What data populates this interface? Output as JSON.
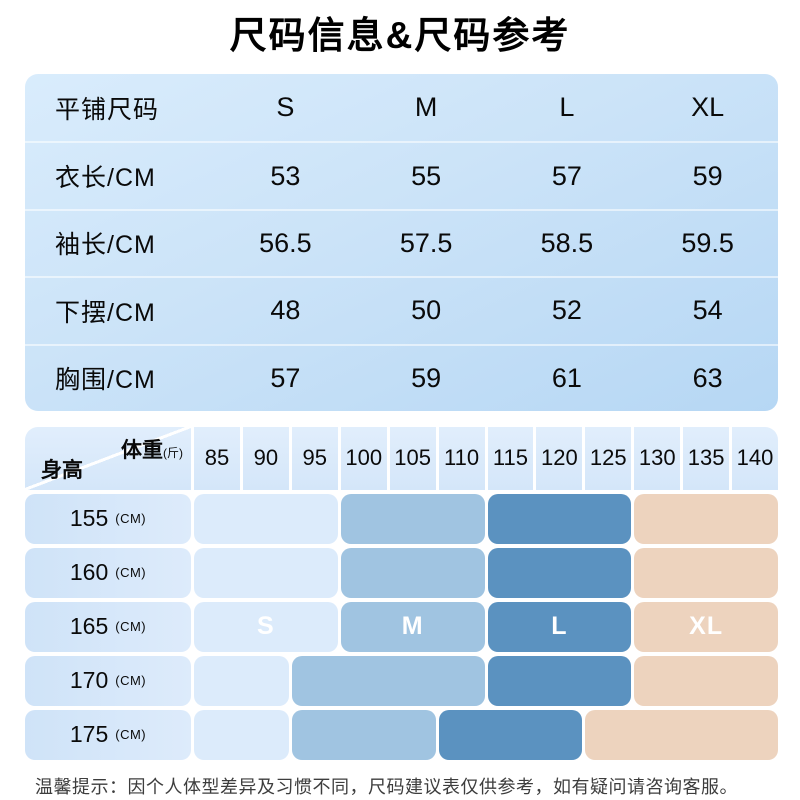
{
  "title": "尺码信息&尺码参考",
  "size_table": {
    "header": {
      "label": "平铺尺码",
      "sizes": [
        "S",
        "M",
        "L",
        "XL"
      ]
    },
    "rows": [
      {
        "label": "衣长/CM",
        "values": [
          "53",
          "55",
          "57",
          "59"
        ]
      },
      {
        "label": "袖长/CM",
        "values": [
          "56.5",
          "57.5",
          "58.5",
          "59.5"
        ]
      },
      {
        "label": "下摆/CM",
        "values": [
          "48",
          "50",
          "52",
          "54"
        ]
      },
      {
        "label": "胸围/CM",
        "values": [
          "57",
          "59",
          "61",
          "63"
        ]
      }
    ]
  },
  "matrix": {
    "corner": {
      "weight_label": "体重",
      "weight_unit": "(斤)",
      "height_label": "身高"
    },
    "weights": [
      "85",
      "90",
      "95",
      "100",
      "105",
      "110",
      "115",
      "120",
      "125",
      "130",
      "135",
      "140"
    ],
    "height_unit": "(CM)",
    "colors": {
      "S": "#dcebfb",
      "M": "#a0c4e1",
      "L": "#5b92c0",
      "XL": "#edd3be"
    },
    "rows": [
      {
        "height": "155",
        "blocks": [
          {
            "size": "S",
            "span": 3,
            "weights": "85-95",
            "label": ""
          },
          {
            "size": "M",
            "span": 3,
            "weights": "100-110",
            "label": ""
          },
          {
            "size": "L",
            "span": 3,
            "weights": "115-125",
            "label": ""
          },
          {
            "size": "XL",
            "span": 3,
            "weights": "130-140",
            "label": ""
          }
        ]
      },
      {
        "height": "160",
        "blocks": [
          {
            "size": "S",
            "span": 3,
            "weights": "85-95",
            "label": ""
          },
          {
            "size": "M",
            "span": 3,
            "weights": "100-110",
            "label": ""
          },
          {
            "size": "L",
            "span": 3,
            "weights": "115-125",
            "label": ""
          },
          {
            "size": "XL",
            "span": 3,
            "weights": "130-140",
            "label": ""
          }
        ]
      },
      {
        "height": "165",
        "blocks": [
          {
            "size": "S",
            "span": 3,
            "weights": "85-95",
            "label": "S"
          },
          {
            "size": "M",
            "span": 3,
            "weights": "100-110",
            "label": "M"
          },
          {
            "size": "L",
            "span": 3,
            "weights": "115-125",
            "label": "L"
          },
          {
            "size": "XL",
            "span": 3,
            "weights": "130-140",
            "label": "XL"
          }
        ]
      },
      {
        "height": "170",
        "blocks": [
          {
            "size": "S",
            "span": 2,
            "weights": "85-90",
            "label": ""
          },
          {
            "size": "M",
            "span": 4,
            "weights": "95-110",
            "label": ""
          },
          {
            "size": "L",
            "span": 3,
            "weights": "115-125",
            "label": ""
          },
          {
            "size": "XL",
            "span": 3,
            "weights": "130-140",
            "label": ""
          }
        ]
      },
      {
        "height": "175",
        "blocks": [
          {
            "size": "S",
            "span": 2,
            "weights": "85-90",
            "label": ""
          },
          {
            "size": "M",
            "span": 3,
            "weights": "95-105",
            "label": ""
          },
          {
            "size": "L",
            "span": 3,
            "weights": "110-120",
            "label": ""
          },
          {
            "size": "XL",
            "span": 4,
            "weights": "125-140",
            "label": ""
          }
        ]
      }
    ]
  },
  "note": "温馨提示：因个人体型差异及习惯不同，尺码建议表仅供参考，如有疑问请咨询客服。",
  "chart_data": [
    {
      "type": "table",
      "title": "平铺尺码",
      "columns": [
        "平铺尺码",
        "S",
        "M",
        "L",
        "XL"
      ],
      "rows": [
        [
          "衣长/CM",
          53,
          55,
          57,
          59
        ],
        [
          "袖长/CM",
          56.5,
          57.5,
          58.5,
          59.5
        ],
        [
          "下摆/CM",
          48,
          50,
          52,
          54
        ],
        [
          "胸围/CM",
          57,
          59,
          61,
          63
        ]
      ]
    },
    {
      "type": "heatmap",
      "xlabel": "体重(斤)",
      "ylabel": "身高(CM)",
      "x": [
        85,
        90,
        95,
        100,
        105,
        110,
        115,
        120,
        125,
        130,
        135,
        140
      ],
      "y": [
        155,
        160,
        165,
        170,
        175
      ],
      "cells": [
        [
          "S",
          "S",
          "S",
          "M",
          "M",
          "M",
          "L",
          "L",
          "L",
          "XL",
          "XL",
          "XL"
        ],
        [
          "S",
          "S",
          "S",
          "M",
          "M",
          "M",
          "L",
          "L",
          "L",
          "XL",
          "XL",
          "XL"
        ],
        [
          "S",
          "S",
          "S",
          "M",
          "M",
          "M",
          "L",
          "L",
          "L",
          "XL",
          "XL",
          "XL"
        ],
        [
          "S",
          "S",
          "M",
          "M",
          "M",
          "M",
          "L",
          "L",
          "L",
          "XL",
          "XL",
          "XL"
        ],
        [
          "S",
          "S",
          "M",
          "M",
          "M",
          "L",
          "L",
          "L",
          "XL",
          "XL",
          "XL",
          "XL"
        ]
      ],
      "legend": {
        "S": "#dcebfb",
        "M": "#a0c4e1",
        "L": "#5b92c0",
        "XL": "#edd3be"
      },
      "legend_position": "in-row-165"
    }
  ]
}
